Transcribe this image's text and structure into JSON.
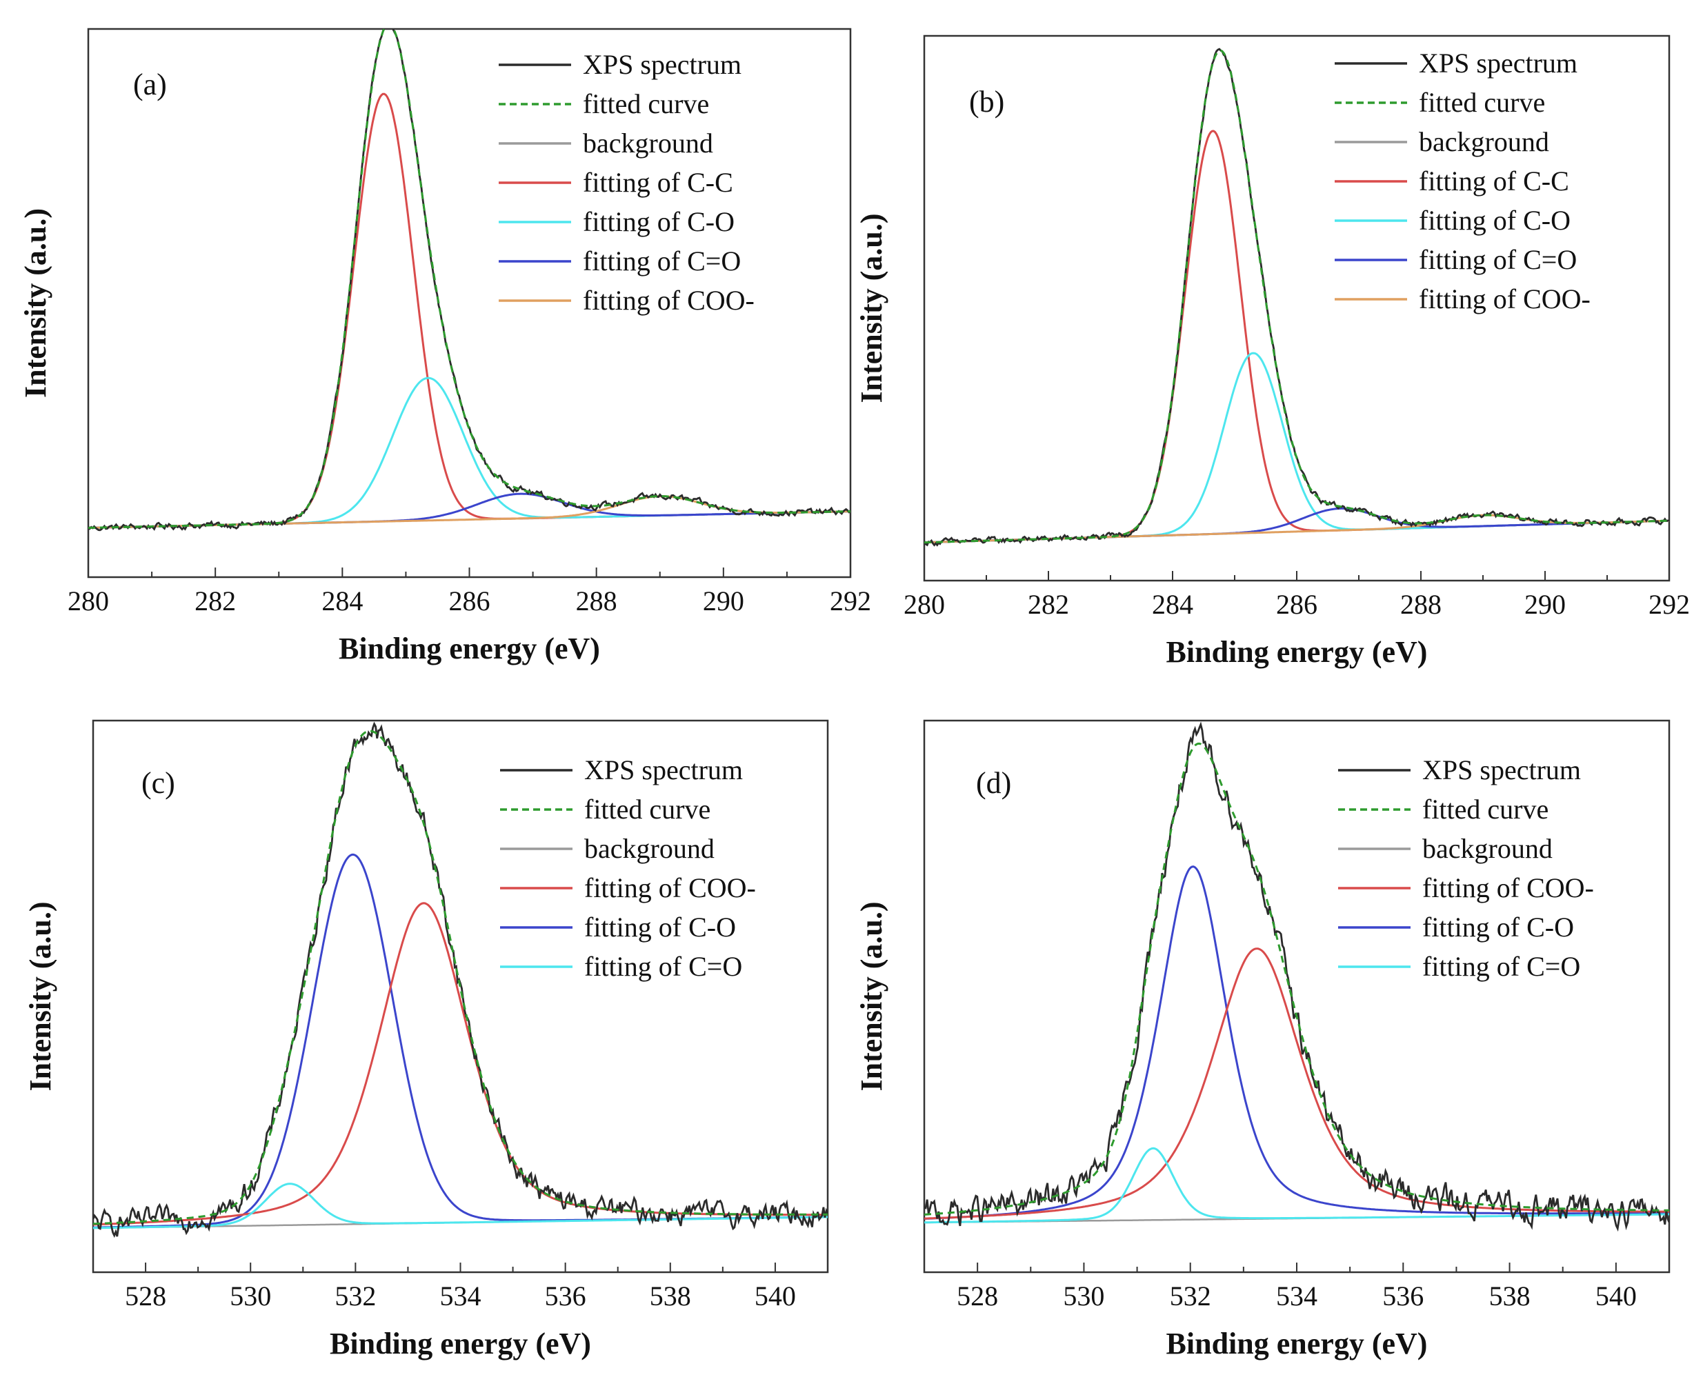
{
  "colors": {
    "spectrum": "#2b2b2b",
    "fitted": "#2e9b2e",
    "background": "#9a9a9a",
    "red": "#d94b4b",
    "cyan": "#4de6ee",
    "blue": "#3b45cc",
    "orange": "#e0a060"
  },
  "chart_data": [
    {
      "type": "line",
      "panel_label": "(a)",
      "xlabel": "Binding energy (eV)",
      "ylabel": "Intensity (a.u.)",
      "xlim": [
        280,
        292
      ],
      "ylim": [
        0,
        1.0
      ],
      "x_ticks": [
        "280",
        "282",
        "284",
        "286",
        "288",
        "290",
        "292"
      ],
      "legend_position": "top-right",
      "legend": [
        {
          "name": "XPS spectrum",
          "color": "spectrum",
          "dash": false
        },
        {
          "name": "fitted curve",
          "color": "fitted",
          "dash": true
        },
        {
          "name": "background",
          "color": "background",
          "dash": false
        },
        {
          "name": "fitting of C-C",
          "color": "red",
          "dash": false
        },
        {
          "name": "fitting of C-O",
          "color": "cyan",
          "dash": false
        },
        {
          "name": "fitting of C=O",
          "color": "blue",
          "dash": false
        },
        {
          "name": "fitting of COO-",
          "color": "orange",
          "dash": false
        }
      ],
      "baseline": {
        "x": [
          280,
          292
        ],
        "y": [
          0.09,
          0.12
        ]
      },
      "peaks": [
        {
          "series": "fitting of C-C",
          "color": "red",
          "center": 284.65,
          "height": 0.78,
          "fwhm": 1.1
        },
        {
          "series": "fitting of C-O",
          "color": "cyan",
          "center": 285.35,
          "height": 0.26,
          "fwhm": 1.3
        },
        {
          "series": "fitting of C=O",
          "color": "blue",
          "center": 286.8,
          "height": 0.045,
          "fwhm": 1.6
        },
        {
          "series": "fitting of COO-",
          "color": "orange",
          "center": 289.0,
          "height": 0.035,
          "fwhm": 1.5
        }
      ],
      "noise": 0.002
    },
    {
      "type": "line",
      "panel_label": "(b)",
      "xlabel": "Binding energy (eV)",
      "ylabel": "Intensity (a.u.)",
      "xlim": [
        280,
        292
      ],
      "ylim": [
        0,
        1.0
      ],
      "x_ticks": [
        "280",
        "282",
        "284",
        "286",
        "288",
        "290",
        "292"
      ],
      "legend_position": "top-right",
      "legend": [
        {
          "name": "XPS spectrum",
          "color": "spectrum",
          "dash": false
        },
        {
          "name": "fitted curve",
          "color": "fitted",
          "dash": true
        },
        {
          "name": "background",
          "color": "background",
          "dash": false
        },
        {
          "name": "fitting of C-C",
          "color": "red",
          "dash": false
        },
        {
          "name": "fitting of C-O",
          "color": "cyan",
          "dash": false
        },
        {
          "name": "fitting of C=O",
          "color": "blue",
          "dash": false
        },
        {
          "name": "fitting of COO-",
          "color": "orange",
          "dash": false
        }
      ],
      "baseline": {
        "x": [
          280,
          292
        ],
        "y": [
          0.07,
          0.11
        ]
      },
      "peaks": [
        {
          "series": "fitting of C-C",
          "color": "red",
          "center": 284.65,
          "height": 0.74,
          "fwhm": 1.05
        },
        {
          "series": "fitting of C-O",
          "color": "cyan",
          "center": 285.3,
          "height": 0.33,
          "fwhm": 1.1
        },
        {
          "series": "fitting of C=O",
          "color": "blue",
          "center": 286.7,
          "height": 0.04,
          "fwhm": 1.4
        },
        {
          "series": "fitting of COO-",
          "color": "orange",
          "center": 289.0,
          "height": 0.02,
          "fwhm": 1.4
        }
      ],
      "noise": 0.002
    },
    {
      "type": "line",
      "panel_label": "(c)",
      "xlabel": "Binding energy (eV)",
      "ylabel": "Intensity (a.u.)",
      "xlim": [
        527,
        541
      ],
      "ylim": [
        0,
        1.0
      ],
      "x_ticks": [
        "528",
        "530",
        "532",
        "534",
        "536",
        "538",
        "540"
      ],
      "legend_position": "top-right",
      "legend": [
        {
          "name": "XPS spectrum",
          "color": "spectrum",
          "dash": false
        },
        {
          "name": "fitted curve",
          "color": "fitted",
          "dash": true
        },
        {
          "name": "background",
          "color": "background",
          "dash": false
        },
        {
          "name": "fitting of COO-",
          "color": "red",
          "dash": false
        },
        {
          "name": "fitting of C-O",
          "color": "blue",
          "dash": false
        },
        {
          "name": "fitting of C=O",
          "color": "cyan",
          "dash": false
        }
      ],
      "baseline": {
        "x": [
          527,
          541
        ],
        "y": [
          0.08,
          0.1
        ]
      },
      "peaks": [
        {
          "series": "fitting of C-O",
          "color": "blue",
          "center": 531.95,
          "height": 0.67,
          "fwhm": 1.8,
          "mix": 0.05
        },
        {
          "series": "fitting of COO-",
          "color": "red",
          "center": 533.3,
          "height": 0.58,
          "fwhm": 2.0,
          "mix": 0.45
        },
        {
          "series": "fitting of C=O",
          "color": "cyan",
          "center": 530.75,
          "height": 0.075,
          "fwhm": 1.1,
          "mix": 0.1
        }
      ],
      "noise": 0.007
    },
    {
      "type": "line",
      "panel_label": "(d)",
      "xlabel": "Binding energy (eV)",
      "ylabel": "Intensity (a.u.)",
      "xlim": [
        527,
        541
      ],
      "ylim": [
        0,
        1.0
      ],
      "x_ticks": [
        "528",
        "530",
        "532",
        "534",
        "536",
        "538",
        "540"
      ],
      "legend_position": "top-right",
      "legend": [
        {
          "name": "XPS spectrum",
          "color": "spectrum",
          "dash": false
        },
        {
          "name": "fitted curve",
          "color": "fitted",
          "dash": true
        },
        {
          "name": "background",
          "color": "background",
          "dash": false
        },
        {
          "name": "fitting of COO-",
          "color": "red",
          "dash": false
        },
        {
          "name": "fitting of C-O",
          "color": "blue",
          "dash": false
        },
        {
          "name": "fitting of C=O",
          "color": "cyan",
          "dash": false
        }
      ],
      "baseline": {
        "x": [
          527,
          541
        ],
        "y": [
          0.09,
          0.105
        ]
      },
      "peaks": [
        {
          "series": "fitting of C-O",
          "color": "blue",
          "center": 532.05,
          "height": 0.64,
          "fwhm": 1.5,
          "mix": 0.5
        },
        {
          "series": "fitting of COO-",
          "color": "red",
          "center": 533.25,
          "height": 0.49,
          "fwhm": 2.0,
          "mix": 0.6
        },
        {
          "series": "fitting of C=O",
          "color": "cyan",
          "center": 531.3,
          "height": 0.13,
          "fwhm": 0.9,
          "mix": 0.2
        }
      ],
      "noise": 0.009
    }
  ]
}
